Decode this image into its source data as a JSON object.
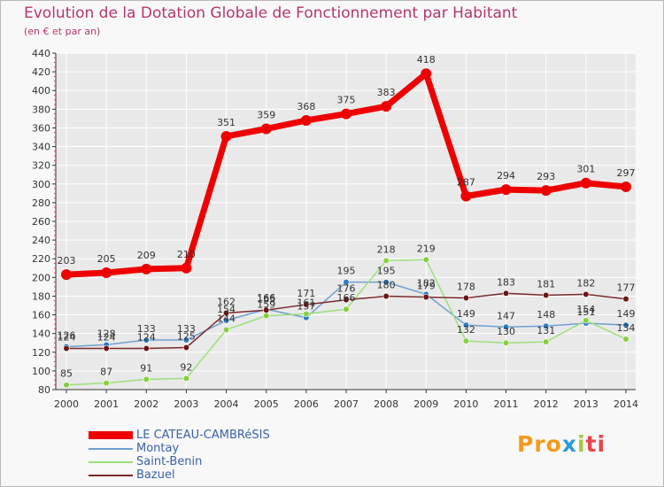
{
  "title": "Evolution de la Dotation Globale de Fonctionnement par Habitant",
  "subtitle": "(en € et par an)",
  "logo": {
    "p1": "Pro",
    "p2": "x",
    "p3": "i",
    "p4": "ti"
  },
  "colors": {
    "axis": "#333333",
    "grid": "#ffffff",
    "title": "#b4366f",
    "legend_text": "#3b62a8"
  },
  "chart_data": {
    "type": "line",
    "title": "Evolution de la Dotation Globale de Fonctionnement par Habitant",
    "xlabel": "",
    "ylabel": "(en € et par an)",
    "ylim": [
      80,
      440
    ],
    "yticks": [
      80,
      100,
      120,
      140,
      160,
      180,
      200,
      220,
      240,
      260,
      280,
      300,
      320,
      340,
      360,
      380,
      400,
      420,
      440
    ],
    "categories": [
      "2000",
      "2001",
      "2002",
      "2003",
      "2004",
      "2005",
      "2006",
      "2007",
      "2008",
      "2009",
      "2010",
      "2011",
      "2012",
      "2013",
      "2014"
    ],
    "series": [
      {
        "name": "LE CATEAU-CAMBRéSIS",
        "color": "#ee0000",
        "marker_color": "#ee0000",
        "values": [
          203,
          205,
          209,
          210,
          351,
          359,
          368,
          375,
          383,
          418,
          287,
          294,
          293,
          301,
          297
        ],
        "labels": [
          "203",
          "205",
          "209",
          "210",
          "351",
          "359",
          "368",
          "375",
          "383",
          "418",
          "287",
          "294",
          "293",
          "301",
          "297"
        ]
      },
      {
        "name": "Montay",
        "color": "#6e9fd0",
        "marker_color": "#2b7bc4",
        "values": [
          126,
          128,
          133,
          133,
          154,
          166,
          157,
          195,
          195,
          182,
          149,
          147,
          148,
          151,
          149
        ],
        "labels": [
          "126",
          "128",
          "133",
          "133",
          "154",
          "166",
          "157",
          "195",
          "195",
          "182",
          "149",
          "147",
          "148",
          "151",
          "149"
        ]
      },
      {
        "name": "Saint-Benin",
        "color": "#9be07a",
        "marker_color": "#86cf3f",
        "values": [
          85,
          87,
          91,
          92,
          144,
          159,
          161,
          166,
          218,
          219,
          132,
          130,
          131,
          154,
          134
        ],
        "labels": [
          "85",
          "87",
          "91",
          "92",
          "144",
          "159",
          "161",
          "166",
          "218",
          "219",
          "132",
          "130",
          "131",
          "154",
          "134"
        ]
      },
      {
        "name": "Bazuel",
        "color": "#7a2a2a",
        "marker_color": "#6b1515",
        "values": [
          124,
          124,
          124,
          125,
          162,
          165,
          171,
          176,
          180,
          179,
          178,
          183,
          181,
          182,
          177
        ],
        "labels": [
          "124",
          "124",
          "124",
          "125",
          "162",
          "165",
          "171",
          "176",
          "180",
          "179",
          "178",
          "183",
          "181",
          "182",
          "177"
        ]
      }
    ]
  }
}
